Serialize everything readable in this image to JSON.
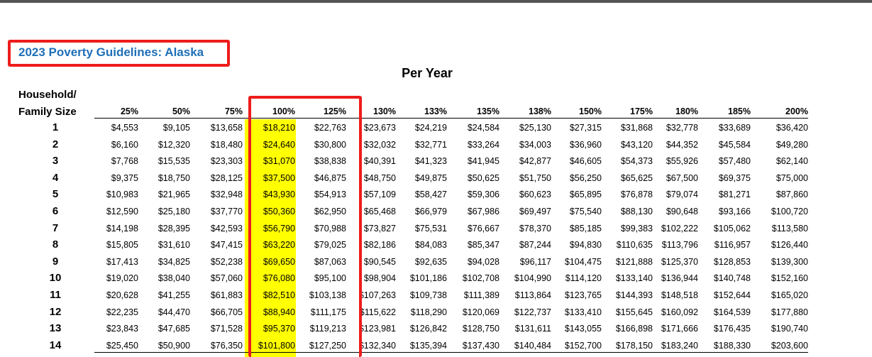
{
  "title": "2023 Poverty Guidelines: Alaska",
  "subtitle": "Per Year",
  "household_label_line1": "Household/",
  "household_label_line2": "Family Size",
  "columns": [
    "25%",
    "50%",
    "75%",
    "100%",
    "125%",
    "130%",
    "133%",
    "135%",
    "138%",
    "150%",
    "175%",
    "180%",
    "185%",
    "200%"
  ],
  "rows": [
    {
      "size": "1",
      "values": [
        "$4,553",
        "$9,105",
        "$13,658",
        "$18,210",
        "$22,763",
        "$23,673",
        "$24,219",
        "$24,584",
        "$25,130",
        "$27,315",
        "$31,868",
        "$32,778",
        "$33,689",
        "$36,420"
      ]
    },
    {
      "size": "2",
      "values": [
        "$6,160",
        "$12,320",
        "$18,480",
        "$24,640",
        "$30,800",
        "$32,032",
        "$32,771",
        "$33,264",
        "$34,003",
        "$36,960",
        "$43,120",
        "$44,352",
        "$45,584",
        "$49,280"
      ]
    },
    {
      "size": "3",
      "values": [
        "$7,768",
        "$15,535",
        "$23,303",
        "$31,070",
        "$38,838",
        "$40,391",
        "$41,323",
        "$41,945",
        "$42,877",
        "$46,605",
        "$54,373",
        "$55,926",
        "$57,480",
        "$62,140"
      ]
    },
    {
      "size": "4",
      "values": [
        "$9,375",
        "$18,750",
        "$28,125",
        "$37,500",
        "$46,875",
        "$48,750",
        "$49,875",
        "$50,625",
        "$51,750",
        "$56,250",
        "$65,625",
        "$67,500",
        "$69,375",
        "$75,000"
      ]
    },
    {
      "size": "5",
      "values": [
        "$10,983",
        "$21,965",
        "$32,948",
        "$43,930",
        "$54,913",
        "$57,109",
        "$58,427",
        "$59,306",
        "$60,623",
        "$65,895",
        "$76,878",
        "$79,074",
        "$81,271",
        "$87,860"
      ]
    },
    {
      "size": "6",
      "values": [
        "$12,590",
        "$25,180",
        "$37,770",
        "$50,360",
        "$62,950",
        "$65,468",
        "$66,979",
        "$67,986",
        "$69,497",
        "$75,540",
        "$88,130",
        "$90,648",
        "$93,166",
        "$100,720"
      ]
    },
    {
      "size": "7",
      "values": [
        "$14,198",
        "$28,395",
        "$42,593",
        "$56,790",
        "$70,988",
        "$73,827",
        "$75,531",
        "$76,667",
        "$78,370",
        "$85,185",
        "$99,383",
        "$102,222",
        "$105,062",
        "$113,580"
      ]
    },
    {
      "size": "8",
      "values": [
        "$15,805",
        "$31,610",
        "$47,415",
        "$63,220",
        "$79,025",
        "$82,186",
        "$84,083",
        "$85,347",
        "$87,244",
        "$94,830",
        "$110,635",
        "$113,796",
        "$116,957",
        "$126,440"
      ]
    },
    {
      "size": "9",
      "values": [
        "$17,413",
        "$34,825",
        "$52,238",
        "$69,650",
        "$87,063",
        "$90,545",
        "$92,635",
        "$94,028",
        "$96,117",
        "$104,475",
        "$121,888",
        "$125,370",
        "$128,853",
        "$139,300"
      ]
    },
    {
      "size": "10",
      "values": [
        "$19,020",
        "$38,040",
        "$57,060",
        "$76,080",
        "$95,100",
        "$98,904",
        "$101,186",
        "$102,708",
        "$104,990",
        "$114,120",
        "$133,140",
        "$136,944",
        "$140,748",
        "$152,160"
      ]
    },
    {
      "size": "11",
      "values": [
        "$20,628",
        "$41,255",
        "$61,883",
        "$82,510",
        "$103,138",
        "$107,263",
        "$109,738",
        "$111,389",
        "$113,864",
        "$123,765",
        "$144,393",
        "$148,518",
        "$152,644",
        "$165,020"
      ]
    },
    {
      "size": "12",
      "values": [
        "$22,235",
        "$44,470",
        "$66,705",
        "$88,940",
        "$111,175",
        "$115,622",
        "$118,290",
        "$120,069",
        "$122,737",
        "$133,410",
        "$155,645",
        "$160,092",
        "$164,539",
        "$177,880"
      ]
    },
    {
      "size": "13",
      "values": [
        "$23,843",
        "$47,685",
        "$71,528",
        "$95,370",
        "$119,213",
        "$123,981",
        "$126,842",
        "$128,750",
        "$131,611",
        "$143,055",
        "$166,898",
        "$171,666",
        "$176,435",
        "$190,740"
      ]
    },
    {
      "size": "14",
      "values": [
        "$25,450",
        "$50,900",
        "$76,350",
        "$101,800",
        "$127,250",
        "$132,340",
        "$135,394",
        "$137,430",
        "$140,484",
        "$152,700",
        "$178,150",
        "$183,240",
        "$188,330",
        "$203,600"
      ]
    }
  ],
  "colors": {
    "title": "#1f6fb7",
    "highlight": "#ffff00",
    "annotation_box": "#ee1c1c"
  }
}
